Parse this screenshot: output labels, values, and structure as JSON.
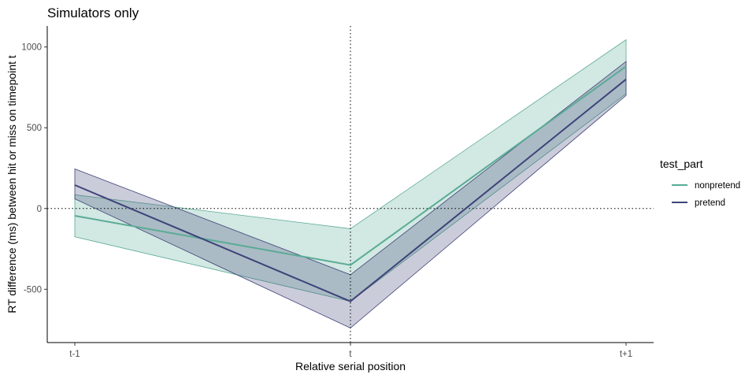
{
  "chart_data": {
    "type": "line",
    "title": "Simulators only",
    "xlabel": "Relative serial position",
    "ylabel": "RT difference (ms) between hit or miss on timepoint t",
    "categories": [
      "t-1",
      "t",
      "t+1"
    ],
    "ylim": [
      -830,
      1130
    ],
    "yticks": [
      -500,
      0,
      500,
      1000
    ],
    "reference_lines": {
      "x": "t",
      "y": 0,
      "style": "dotted"
    },
    "grid": false,
    "legend": {
      "title": "test_part",
      "position": "right"
    },
    "series": [
      {
        "name": "nonpretend",
        "color": "#5aab95",
        "fill": "#5aab95",
        "values": [
          -45,
          -350,
          880
        ],
        "lower": [
          -175,
          -575,
          710
        ],
        "upper": [
          85,
          -125,
          1045
        ]
      },
      {
        "name": "pretend",
        "color": "#3f4378",
        "fill": "#3f4378",
        "values": [
          145,
          -575,
          800
        ],
        "lower": [
          60,
          -740,
          700
        ],
        "upper": [
          245,
          -410,
          910
        ]
      }
    ]
  }
}
